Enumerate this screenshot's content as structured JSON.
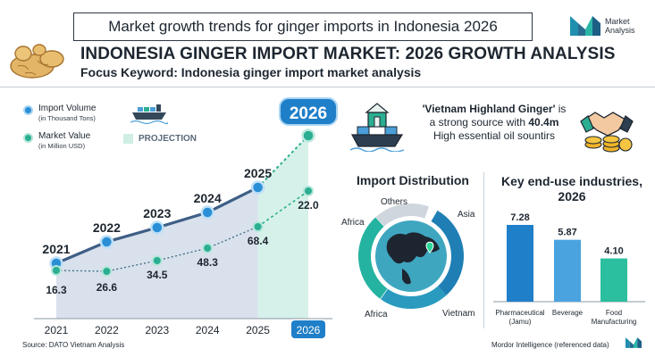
{
  "header": {
    "banner": "Market growth trends for ginger imports in Indonesia 2026",
    "brand_line1": "Market",
    "brand_line2": "Analysis",
    "title": "INDONESIA GINGER IMPORT MARKET: 2026 GROWTH ANALYSIS",
    "focus": "Focus Keyword: Indonesia ginger import market analysis"
  },
  "legend": {
    "volume": "Import Volume",
    "volume_unit": "(in Thousand Tons)",
    "value": "Market Value",
    "value_unit": "(in Million USD)",
    "projection": "PROJECTION"
  },
  "colors": {
    "volume": "#2a8fd6",
    "value": "#2bae91",
    "line": "#3e5f86",
    "badge": "#1f7fc8",
    "projection_fill": "#cfeee5"
  },
  "chart_data": [
    {
      "type": "line",
      "x": [
        "2021",
        "2022",
        "2023",
        "2024",
        "2025",
        "2026"
      ],
      "series": [
        {
          "name": "Import Volume",
          "labels": [
            "2021",
            "2022",
            "2023",
            "2024",
            "2025",
            "2026"
          ]
        },
        {
          "name": "Market Value",
          "values": [
            16.3,
            26.6,
            34.5,
            48.3,
            68.4,
            22.0
          ]
        }
      ],
      "highlight": "2026",
      "projection_from": "2025"
    },
    {
      "type": "pie",
      "title": "Import Distribution",
      "labels": [
        "Asia",
        "Vietnam",
        "Africa",
        "Africa",
        "Others"
      ]
    },
    {
      "type": "bar",
      "title": "Key end-use industries, 2026",
      "categories": [
        "Pharmaceutical (Jamu)",
        "Beverage",
        "Food Manufacturing"
      ],
      "values": [
        7.28,
        5.87,
        4.1
      ],
      "value_labels": [
        "7.28",
        "5.87",
        "4.10"
      ]
    }
  ],
  "vietnam": {
    "name": "'Vietnam Highland Ginger'",
    "line1_suffix": " is",
    "line2_prefix": "a strong source with ",
    "amount": "40.4m",
    "line3": "High essential oil sountirs"
  },
  "footer": {
    "source": "Source: DATO Vietnam Analysis",
    "credit": "Mordor Intelligence (referenced data)"
  }
}
